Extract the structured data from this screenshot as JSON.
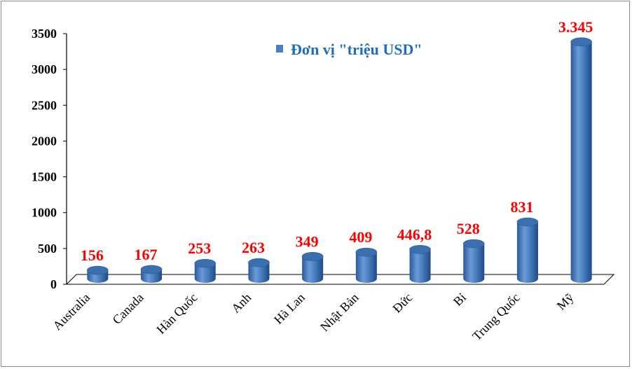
{
  "chart_data": {
    "type": "bar",
    "categories": [
      "Australia",
      "Canada",
      "Hàn Quốc",
      "Anh",
      "Hà Lan",
      "Nhật Bản",
      "Đức",
      "Bỉ",
      "Trung Quốc",
      "Mỹ"
    ],
    "series": [
      {
        "name": "Đơn vị \"triệu USD\"",
        "values": [
          156,
          167,
          253,
          263,
          349,
          409,
          446.8,
          528,
          831,
          3345
        ],
        "data_labels": [
          "156",
          "167",
          "253",
          "263",
          "349",
          "409",
          "446,8",
          "528",
          "831",
          "3.345"
        ]
      }
    ],
    "ylim": [
      0,
      3500
    ],
    "yticks": [
      "0",
      "500",
      "1000",
      "1500",
      "2000",
      "2500",
      "3000",
      "3500"
    ],
    "legend_position": "top-center",
    "grid": false,
    "colors": {
      "bar": "#4a7fc1",
      "label": "#ff0000",
      "legend_text": "#1f6fb8"
    }
  }
}
